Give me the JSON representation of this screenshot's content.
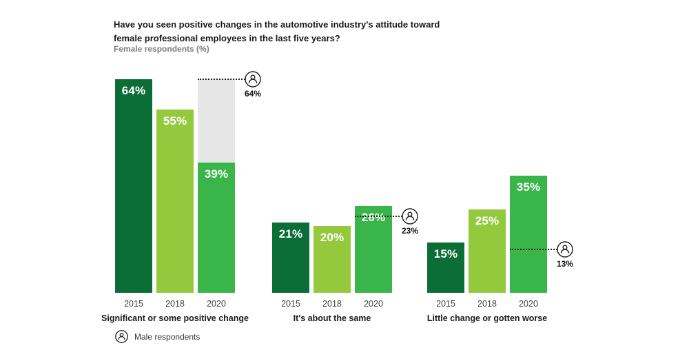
{
  "title": "Have you seen positive changes in the automotive industry's attitude toward female professional employees in the last five years?",
  "subtitle": "Female respondents (%)",
  "legend": {
    "male_label": "Male respondents"
  },
  "colors": {
    "bar_2015": "#0B6E36",
    "bar_2018": "#94C83D",
    "bar_2020": "#3AB54A",
    "ghost_bar": "#E6E6E6",
    "dotted_line": "#1A1A1A",
    "text": "#1A1A1A"
  },
  "chart_data": {
    "type": "bar",
    "title": "Have you seen positive changes in the automotive industry's attitude toward female professional employees in the last five years?",
    "ylabel": "Female respondents (%)",
    "unit": "%",
    "categories": [
      "2015",
      "2018",
      "2020"
    ],
    "series_colors": [
      "#0B6E36",
      "#94C83D",
      "#3AB54A"
    ],
    "ghost_color": "#E6E6E6",
    "ylim": [
      0,
      70
    ],
    "grid": false,
    "legend": "Male respondents",
    "groups": [
      {
        "label": "Significant or some positive change",
        "values": [
          64,
          55,
          39
        ],
        "value_labels": [
          "64%",
          "55%",
          "39%"
        ],
        "male_value": 64,
        "male_label": "64%",
        "ghost_bar_to": 64
      },
      {
        "label": "It's about the same",
        "values": [
          21,
          20,
          26
        ],
        "value_labels": [
          "21%",
          "20%",
          "26%"
        ],
        "male_value": 23,
        "male_label": "23%"
      },
      {
        "label": "Little change or gotten worse",
        "values": [
          15,
          25,
          35
        ],
        "value_labels": [
          "15%",
          "25%",
          "35%"
        ],
        "male_value": 13,
        "male_label": "13%"
      }
    ]
  }
}
